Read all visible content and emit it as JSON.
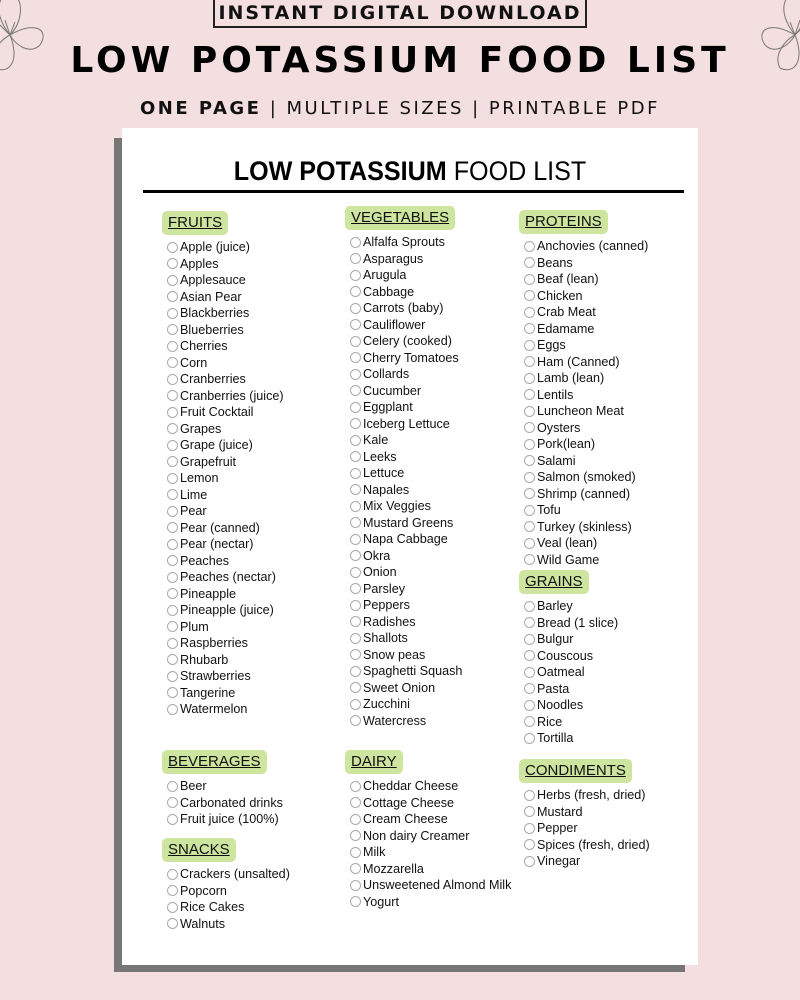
{
  "banner": "INSTANT DIGITAL DOWNLOAD",
  "title": "LOW POTASSIUM FOOD LIST",
  "subtitle": {
    "bold": "ONE PAGE",
    "rest": " | MULTIPLE SIZES | PRINTABLE PDF"
  },
  "document": {
    "title_bold": "LOW POTASSIUM",
    "title_rest": " FOOD LIST",
    "label_color": "#cde59e",
    "sections": {
      "fruits": {
        "label": "FRUITS",
        "items": [
          "Apple (juice)",
          "Apples",
          "Applesauce",
          "Asian Pear",
          "Blackberries",
          "Blueberries",
          "Cherries",
          "Corn",
          "Cranberries",
          "Cranberries (juice)",
          "Fruit Cocktail",
          "Grapes",
          "Grape  (juice)",
          "Grapefruit",
          "Lemon",
          "Lime",
          "Pear",
          "Pear (canned)",
          "Pear (nectar)",
          "Peaches",
          "Peaches (nectar)",
          "Pineapple",
          "Pineapple (juice)",
          "Plum",
          "Raspberries",
          "Rhubarb",
          "Strawberries",
          "Tangerine",
          "Watermelon"
        ]
      },
      "vegetables": {
        "label": "VEGETABLES",
        "items": [
          "Alfalfa Sprouts",
          "Asparagus",
          "Arugula",
          "Cabbage",
          "Carrots (baby)",
          "Cauliflower",
          "Celery (cooked)",
          "Cherry Tomatoes",
          "Collards",
          "Cucumber",
          "Eggplant",
          "Iceberg Lettuce",
          "Kale",
          "Leeks",
          "Lettuce",
          "Napales",
          "Mix Veggies",
          "Mustard Greens",
          "Napa Cabbage",
          "Okra",
          "Onion",
          "Parsley",
          "Peppers",
          "Radishes",
          "Shallots",
          "Snow peas",
          "Spaghetti Squash",
          "Sweet Onion",
          "Zucchini",
          "Watercress"
        ]
      },
      "proteins": {
        "label": "PROTEINS",
        "items": [
          "Anchovies (canned)",
          "Beans",
          "Beaf (lean)",
          "Chicken",
          "Crab Meat",
          "Edamame",
          "Eggs",
          "Ham (Canned)",
          "Lamb (lean)",
          "Lentils",
          "Luncheon Meat",
          "Oysters",
          "Pork(lean)",
          "Salami",
          "Salmon (smoked)",
          "Shrimp (canned)",
          "Tofu",
          "Turkey (skinless)",
          "Veal (lean)",
          "Wild Game"
        ]
      },
      "grains": {
        "label": "GRAINS",
        "items": [
          "Barley",
          "Bread (1 slice)",
          "Bulgur",
          "Couscous",
          "Oatmeal",
          "Pasta",
          "Noodles",
          "Rice",
          "Tortilla"
        ]
      },
      "beverages": {
        "label": "BEVERAGES",
        "items": [
          "Beer",
          "Carbonated drinks",
          "Fruit juice (100%)"
        ]
      },
      "snacks": {
        "label": "SNACKS",
        "items": [
          "Crackers (unsalted)",
          "Popcorn",
          "Rice Cakes",
          "Walnuts"
        ]
      },
      "dairy": {
        "label": "DAIRY",
        "items": [
          "Cheddar Cheese",
          "Cottage Cheese",
          "Cream Cheese",
          "Non dairy Creamer",
          "Milk",
          "Mozzarella",
          "Unsweetened Almond Milk",
          "Yogurt"
        ]
      },
      "condiments": {
        "label": "CONDIMENTS",
        "items": [
          "Herbs (fresh, dried)",
          "Mustard",
          "Pepper",
          "Spices (fresh, dried)",
          "Vinegar"
        ]
      }
    }
  }
}
